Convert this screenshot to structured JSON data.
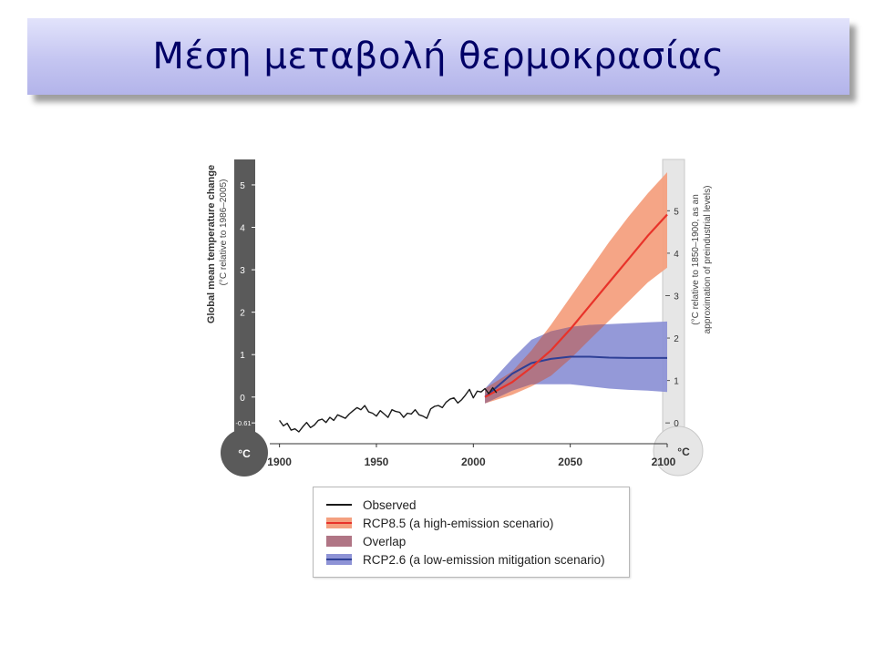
{
  "slide": {
    "title": "Μέση μεταβολή θερμοκρασίας"
  },
  "colors": {
    "title_text": "#000066",
    "banner_light": "#e2e3fb",
    "banner_dark": "#b3b4ea",
    "observed": "#1a1a1a",
    "rcp85_line": "#e8332a",
    "rcp85_band": "#f4a07f",
    "rcp26_line": "#2e3f96",
    "rcp26_band": "#8e93d6",
    "overlap_band": "#b07585",
    "left_thermometer": "#5a5a5a",
    "right_thermometer": "#e6e6e6"
  },
  "chart_data": {
    "type": "line",
    "title": "",
    "left_axis": {
      "label": "Global mean temperature change",
      "sublabel": "(°C relative to 1986–2005)",
      "ticks": [
        "5",
        "4",
        "3",
        "2",
        "1",
        "0"
      ],
      "extra_tick": "-0.61",
      "unit_bulb": "°C",
      "ylim": [
        -1.1,
        5.6
      ]
    },
    "right_axis": {
      "label_line1": "(°C relative to 1850–1900, as an",
      "label_line2": "approximation of preindustrial levels)",
      "ticks": [
        "5",
        "4",
        "3",
        "2",
        "1",
        "0"
      ],
      "offset": 0.61,
      "unit_bulb": "°C"
    },
    "x_axis": {
      "ticks": [
        1900,
        1950,
        2000,
        2050,
        2100
      ],
      "tick_labels": [
        "1900",
        "1950",
        "2000",
        "2050",
        "2100"
      ],
      "xlim": [
        1895,
        2100
      ]
    },
    "series": [
      {
        "name": "Observed",
        "type": "line",
        "x": [
          1900,
          1902,
          1904,
          1906,
          1908,
          1910,
          1912,
          1914,
          1916,
          1918,
          1920,
          1922,
          1924,
          1926,
          1928,
          1930,
          1932,
          1934,
          1936,
          1938,
          1940,
          1942,
          1944,
          1946,
          1948,
          1950,
          1952,
          1954,
          1956,
          1958,
          1960,
          1962,
          1964,
          1966,
          1968,
          1970,
          1972,
          1974,
          1976,
          1978,
          1980,
          1982,
          1984,
          1986,
          1988,
          1990,
          1992,
          1994,
          1996,
          1998,
          2000,
          2002,
          2004,
          2006,
          2008,
          2010,
          2012
        ],
        "y": [
          -0.55,
          -0.68,
          -0.62,
          -0.78,
          -0.75,
          -0.82,
          -0.7,
          -0.6,
          -0.72,
          -0.66,
          -0.55,
          -0.52,
          -0.6,
          -0.48,
          -0.55,
          -0.42,
          -0.46,
          -0.5,
          -0.4,
          -0.32,
          -0.25,
          -0.3,
          -0.2,
          -0.35,
          -0.38,
          -0.45,
          -0.32,
          -0.4,
          -0.48,
          -0.3,
          -0.34,
          -0.36,
          -0.48,
          -0.38,
          -0.4,
          -0.3,
          -0.42,
          -0.45,
          -0.5,
          -0.28,
          -0.22,
          -0.2,
          -0.25,
          -0.12,
          -0.05,
          -0.02,
          -0.14,
          -0.06,
          0.05,
          0.18,
          -0.02,
          0.14,
          0.12,
          0.2,
          0.08,
          0.22,
          0.1
        ]
      },
      {
        "name": "RCP8.5 (a high-emission scenario)",
        "type": "band",
        "x": [
          2006,
          2020,
          2030,
          2040,
          2050,
          2060,
          2070,
          2080,
          2090,
          2100
        ],
        "y": [
          0.0,
          0.35,
          0.7,
          1.1,
          1.6,
          2.15,
          2.7,
          3.25,
          3.8,
          4.3
        ],
        "lower": [
          -0.15,
          0.05,
          0.25,
          0.5,
          0.9,
          1.35,
          1.8,
          2.25,
          2.7,
          3.05
        ],
        "upper": [
          0.2,
          0.6,
          1.1,
          1.7,
          2.35,
          3.0,
          3.65,
          4.25,
          4.8,
          5.3
        ]
      },
      {
        "name": "Overlap",
        "type": "band"
      },
      {
        "name": "RCP2.6 (a low-emission mitigation scenario)",
        "type": "band",
        "x": [
          2006,
          2020,
          2030,
          2040,
          2050,
          2060,
          2070,
          2080,
          2090,
          2100
        ],
        "y": [
          0.0,
          0.55,
          0.8,
          0.9,
          0.95,
          0.95,
          0.93,
          0.92,
          0.92,
          0.92
        ],
        "lower": [
          -0.15,
          0.15,
          0.3,
          0.3,
          0.3,
          0.25,
          0.2,
          0.17,
          0.15,
          0.12
        ],
        "upper": [
          0.2,
          0.9,
          1.35,
          1.55,
          1.65,
          1.7,
          1.72,
          1.74,
          1.76,
          1.78
        ]
      }
    ],
    "legend": {
      "position": "bottom",
      "entries": [
        "Observed",
        "RCP8.5 (a high-emission scenario)",
        "Overlap",
        "RCP2.6 (a low-emission mitigation scenario)"
      ]
    }
  }
}
